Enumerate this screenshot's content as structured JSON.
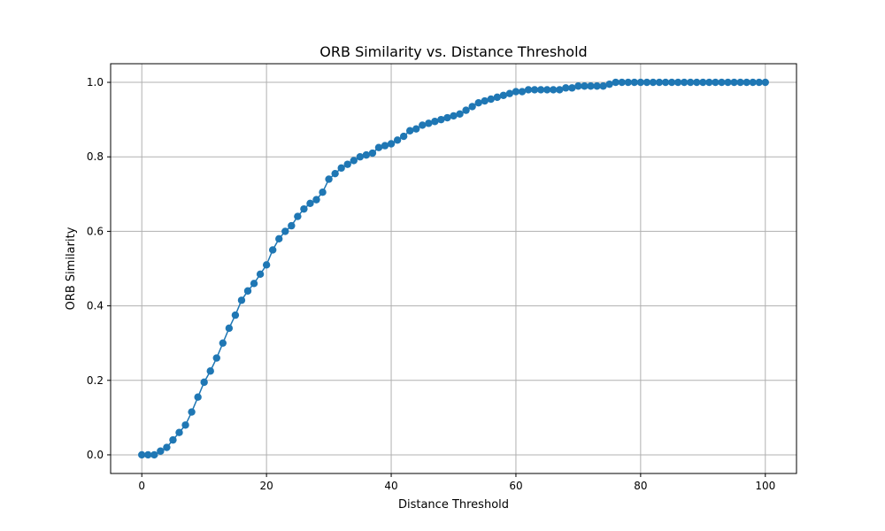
{
  "chart_data": {
    "type": "line",
    "title": "ORB Similarity vs. Distance Threshold",
    "xlabel": "Distance Threshold",
    "ylabel": "ORB Similarity",
    "xlim": [
      -5,
      105
    ],
    "ylim": [
      -0.05,
      1.05
    ],
    "xticks": [
      0,
      20,
      40,
      60,
      80,
      100
    ],
    "yticks": [
      0.0,
      0.2,
      0.4,
      0.6,
      0.8,
      1.0
    ],
    "xtick_labels": [
      "0",
      "20",
      "40",
      "60",
      "80",
      "100"
    ],
    "ytick_labels": [
      "0.0",
      "0.2",
      "0.4",
      "0.6",
      "0.8",
      "1.0"
    ],
    "grid": true,
    "marker": "circle",
    "color": "#1f77b4",
    "x": [
      0,
      1,
      2,
      3,
      4,
      5,
      6,
      7,
      8,
      9,
      10,
      11,
      12,
      13,
      14,
      15,
      16,
      17,
      18,
      19,
      20,
      21,
      22,
      23,
      24,
      25,
      26,
      27,
      28,
      29,
      30,
      31,
      32,
      33,
      34,
      35,
      36,
      37,
      38,
      39,
      40,
      41,
      42,
      43,
      44,
      45,
      46,
      47,
      48,
      49,
      50,
      51,
      52,
      53,
      54,
      55,
      56,
      57,
      58,
      59,
      60,
      61,
      62,
      63,
      64,
      65,
      66,
      67,
      68,
      69,
      70,
      71,
      72,
      73,
      74,
      75,
      76,
      77,
      78,
      79,
      80,
      81,
      82,
      83,
      84,
      85,
      86,
      87,
      88,
      89,
      90,
      91,
      92,
      93,
      94,
      95,
      96,
      97,
      98,
      99,
      100
    ],
    "y": [
      0.0,
      0.0,
      0.0,
      0.01,
      0.02,
      0.04,
      0.06,
      0.08,
      0.115,
      0.155,
      0.195,
      0.225,
      0.26,
      0.3,
      0.34,
      0.375,
      0.415,
      0.44,
      0.46,
      0.485,
      0.51,
      0.55,
      0.58,
      0.6,
      0.615,
      0.64,
      0.66,
      0.675,
      0.685,
      0.705,
      0.74,
      0.755,
      0.77,
      0.78,
      0.79,
      0.8,
      0.805,
      0.81,
      0.825,
      0.83,
      0.835,
      0.845,
      0.855,
      0.87,
      0.875,
      0.885,
      0.89,
      0.895,
      0.9,
      0.905,
      0.91,
      0.915,
      0.925,
      0.935,
      0.945,
      0.95,
      0.955,
      0.96,
      0.965,
      0.97,
      0.975,
      0.975,
      0.98,
      0.98,
      0.98,
      0.98,
      0.98,
      0.98,
      0.985,
      0.985,
      0.99,
      0.99,
      0.99,
      0.99,
      0.99,
      0.995,
      1.0,
      1.0,
      1.0,
      1.0,
      1.0,
      1.0,
      1.0,
      1.0,
      1.0,
      1.0,
      1.0,
      1.0,
      1.0,
      1.0,
      1.0,
      1.0,
      1.0,
      1.0,
      1.0,
      1.0,
      1.0,
      1.0,
      1.0,
      1.0,
      1.0
    ]
  }
}
